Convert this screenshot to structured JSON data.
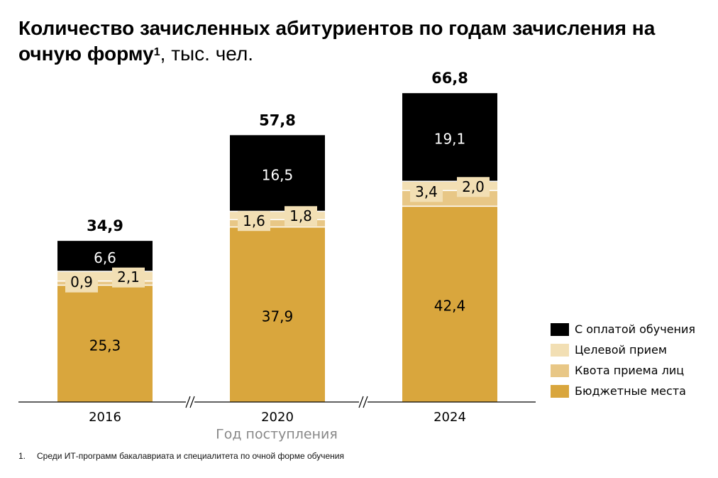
{
  "title": {
    "main": "Количество зачисленных абитуриентов по годам зачисления на очную форму",
    "footnote_mark": "1",
    "unit": ", тыс. чел."
  },
  "footnote": {
    "number": "1.",
    "text": "Среди ИТ-программ бакалавриата и специалитета по очной форме обучения"
  },
  "colors": {
    "paid": "#000000",
    "target": "#f2dfb4",
    "quota": "#e8c786",
    "budget": "#d9a63d",
    "axis": "#000000",
    "xlabel": "#888888"
  },
  "chart_data": {
    "type": "bar",
    "stacked": true,
    "categories": [
      "2016",
      "2020",
      "2024"
    ],
    "xlabel": "Год поступления",
    "totals": [
      "34,9",
      "57,8",
      "66,8"
    ],
    "series": [
      {
        "name": "Бюджетные места",
        "color": "#d9a63d",
        "values": [
          25.3,
          37.9,
          42.4
        ],
        "labels": [
          "25,3",
          "37,9",
          "42,4"
        ]
      },
      {
        "name": "Квота приема лиц",
        "color": "#e8c786",
        "values": [
          0.9,
          1.6,
          3.4
        ],
        "labels": [
          "0,9",
          "1,6",
          "3,4"
        ]
      },
      {
        "name": "Целевой прием",
        "color": "#f2dfb4",
        "values": [
          2.1,
          1.8,
          2.0
        ],
        "labels": [
          "2,1",
          "1,8",
          "2,0"
        ]
      },
      {
        "name": "С оплатой обучения",
        "color": "#000000",
        "values": [
          6.6,
          16.5,
          19.1
        ],
        "labels": [
          "6,6",
          "16,5",
          "19,1"
        ]
      }
    ],
    "axis_break": true,
    "legend_position": "right"
  }
}
